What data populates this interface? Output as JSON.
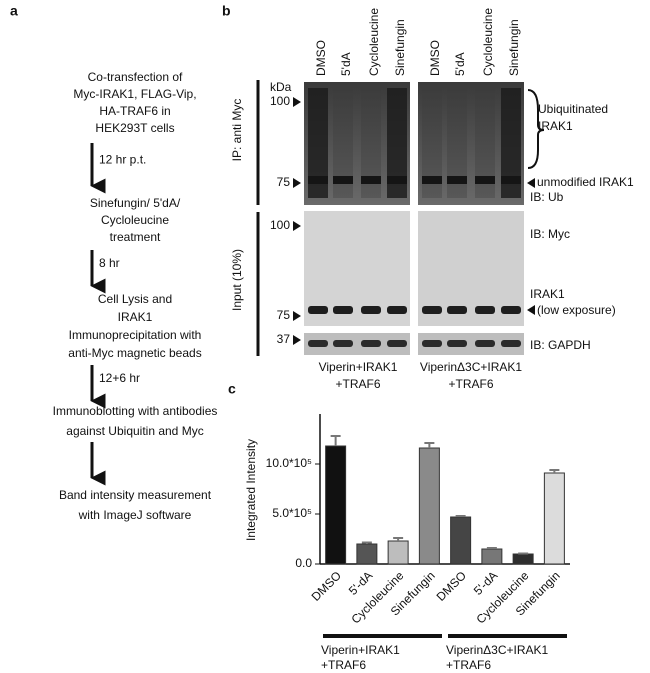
{
  "panel_a": {
    "letter": "a",
    "steps": [
      [
        "Co-transfection of",
        "Myc-IRAK1, FLAG-Vip,",
        "HA-TRAF6 in",
        "HEK293T cells"
      ],
      [
        "Sinefungin/ 5'dA/",
        "Cycloleucine",
        "treatment"
      ],
      [
        "Cell Lysis and",
        "IRAK1",
        "Immunoprecipitation with",
        "anti-Myc magnetic beads"
      ],
      [
        "Immunoblotting with antibodies",
        "against Ubiquitin and Myc"
      ],
      [
        "Band intensity measurement",
        "with ImageJ software"
      ]
    ],
    "arrow_labels": [
      "12 hr p.t.",
      "8 hr",
      "12+6 hr"
    ]
  },
  "panel_b": {
    "letter": "b",
    "lanes": [
      "DMSO",
      "5'dA",
      "Cycloleucine",
      "Sinefungin",
      "DMSO",
      "5'dA",
      "Cycloleucine",
      "Sinefungin"
    ],
    "ip_label": "IP: anti Myc",
    "input_label": "Input (10%)",
    "kda": "kDa",
    "markers": [
      "100",
      "75",
      "100",
      "75",
      "37"
    ],
    "right_labels": {
      "ubiquitinated": [
        "Ubiquitinated",
        "IRAK1"
      ],
      "unmodified": "unmodified IRAK1",
      "ib_ub": "IB: Ub",
      "ib_myc": "IB: Myc",
      "irak1": [
        "IRAK1",
        "(low exposure)"
      ],
      "ib_gapdh": "IB: GAPDH"
    },
    "groups": [
      [
        "Viperin+IRAK1",
        "+TRAF6"
      ],
      [
        "ViperinΔ3C+IRAK1",
        "+TRAF6"
      ]
    ]
  },
  "chart_data": {
    "type": "bar",
    "letter": "c",
    "ylabel": "Integrated Intensity",
    "categories": [
      "DMSO",
      "5'-dA",
      "Cycloleucine",
      "Sinefungin",
      "DMSO",
      "5'-dA",
      "Cycloleucine",
      "Sinefungin"
    ],
    "values": [
      1180000,
      200000,
      230000,
      1160000,
      470000,
      150000,
      100000,
      910000
    ],
    "errors": [
      100000,
      15000,
      30000,
      50000,
      10000,
      10000,
      5000,
      30000
    ],
    "colors": [
      "#111111",
      "#555555",
      "#bdbdbd",
      "#8a8a8a",
      "#454545",
      "#777777",
      "#2e2e2e",
      "#dcdcdc"
    ],
    "ylim": [
      0,
      1500000
    ],
    "yticks": [
      {
        "value": 0,
        "label": "0.0"
      },
      {
        "value": 500000,
        "label": "5.0*10⁵"
      },
      {
        "value": 1000000,
        "label": "10.0*10⁵"
      }
    ],
    "group_labels": [
      [
        "Viperin+IRAK1",
        "+TRAF6"
      ],
      [
        "ViperinΔ3C+IRAK1",
        "+TRAF6"
      ]
    ]
  }
}
